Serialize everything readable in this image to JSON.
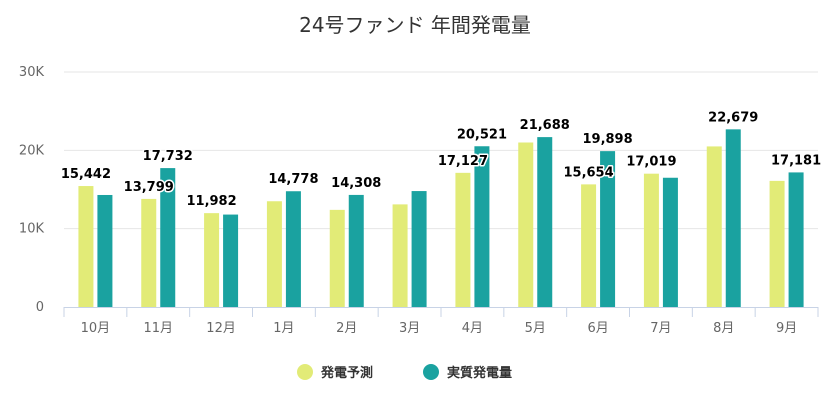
{
  "chart_data": {
    "type": "bar",
    "title": "24号ファンド 年間発電量",
    "categories": [
      "10月",
      "11月",
      "12月",
      "1月",
      "2月",
      "3月",
      "4月",
      "5月",
      "6月",
      "7月",
      "8月",
      "9月"
    ],
    "series": [
      {
        "name": "発電予測",
        "color": "#e2eb77",
        "values": [
          15442,
          13799,
          11982,
          13500,
          12400,
          13100,
          17127,
          21000,
          15654,
          17019,
          20500,
          16100
        ]
      },
      {
        "name": "実質発電量",
        "color": "#1aa2a0",
        "values": [
          14300,
          17732,
          11800,
          14778,
          14308,
          14800,
          20521,
          21688,
          19898,
          16500,
          22679,
          17181
        ]
      }
    ],
    "data_labels": [
      {
        "category": "10月",
        "series": "発電予測",
        "text": "15,442"
      },
      {
        "category": "11月",
        "series": "発電予測",
        "text": "13,799"
      },
      {
        "category": "11月",
        "series": "実質発電量",
        "text": "17,732"
      },
      {
        "category": "12月",
        "series": "発電予測",
        "text": "11,982"
      },
      {
        "category": "1月",
        "series": "実質発電量",
        "text": "14,778"
      },
      {
        "category": "2月",
        "series": "実質発電量",
        "text": "14,308"
      },
      {
        "category": "4月",
        "series": "発電予測",
        "text": "17,127"
      },
      {
        "category": "4月",
        "series": "実質発電量",
        "text": "20,521"
      },
      {
        "category": "5月",
        "series": "実質発電量",
        "text": "21,688"
      },
      {
        "category": "6月",
        "series": "発電予測",
        "text": "15,654"
      },
      {
        "category": "6月",
        "series": "実質発電量",
        "text": "19,898"
      },
      {
        "category": "7月",
        "series": "発電予測",
        "text": "17,019"
      },
      {
        "category": "8月",
        "series": "実質発電量",
        "text": "22,679"
      },
      {
        "category": "9月",
        "series": "実質発電量",
        "text": "17,181"
      }
    ],
    "yticks": [
      "0",
      "10K",
      "20K",
      "30K"
    ],
    "ytick_values": [
      0,
      10000,
      20000,
      30000
    ],
    "ylim": [
      0,
      30000
    ],
    "grid": true,
    "legend": "bottom-center"
  }
}
